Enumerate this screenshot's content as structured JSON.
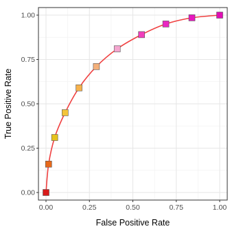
{
  "chart_data": {
    "type": "line",
    "title": "",
    "xlabel": "False Positive Rate",
    "ylabel": "True Positive Rate",
    "xlim": [
      0,
      1
    ],
    "ylim": [
      0,
      1
    ],
    "x_ticks": [
      "0.00",
      "0.25",
      "0.50",
      "0.75",
      "1.00"
    ],
    "y_ticks": [
      "0.00",
      "0.25",
      "0.50",
      "0.75",
      "1.00"
    ],
    "grid": true,
    "legend": "none",
    "series": [
      {
        "type": "line",
        "color": "#f04040",
        "points": [
          {
            "x": 0.0,
            "y": 0.0
          },
          {
            "x": 0.015,
            "y": 0.16
          },
          {
            "x": 0.05,
            "y": 0.31
          },
          {
            "x": 0.11,
            "y": 0.45
          },
          {
            "x": 0.19,
            "y": 0.59
          },
          {
            "x": 0.29,
            "y": 0.71
          },
          {
            "x": 0.41,
            "y": 0.81
          },
          {
            "x": 0.55,
            "y": 0.89
          },
          {
            "x": 0.69,
            "y": 0.95
          },
          {
            "x": 0.84,
            "y": 0.985
          },
          {
            "x": 1.0,
            "y": 1.0
          }
        ]
      }
    ],
    "markers": [
      {
        "x": 0.0,
        "y": 0.0,
        "color": "#d81b1b"
      },
      {
        "x": 0.015,
        "y": 0.16,
        "color": "#e8691a"
      },
      {
        "x": 0.05,
        "y": 0.31,
        "color": "#e6c21f"
      },
      {
        "x": 0.11,
        "y": 0.45,
        "color": "#f3c43a"
      },
      {
        "x": 0.19,
        "y": 0.59,
        "color": "#f7b24b"
      },
      {
        "x": 0.29,
        "y": 0.71,
        "color": "#f5b07a"
      },
      {
        "x": 0.41,
        "y": 0.81,
        "color": "#f4a6cf"
      },
      {
        "x": 0.55,
        "y": 0.89,
        "color": "#f13ebc"
      },
      {
        "x": 0.69,
        "y": 0.95,
        "color": "#ea26c2"
      },
      {
        "x": 0.84,
        "y": 0.985,
        "color": "#e617be"
      },
      {
        "x": 1.0,
        "y": 1.0,
        "color": "#e00fb4"
      }
    ],
    "colors": {
      "curve": "#f04040",
      "panel_border": "#333333",
      "grid_major": "#e6e6e6",
      "grid_minor": "#f2f2f2"
    }
  }
}
